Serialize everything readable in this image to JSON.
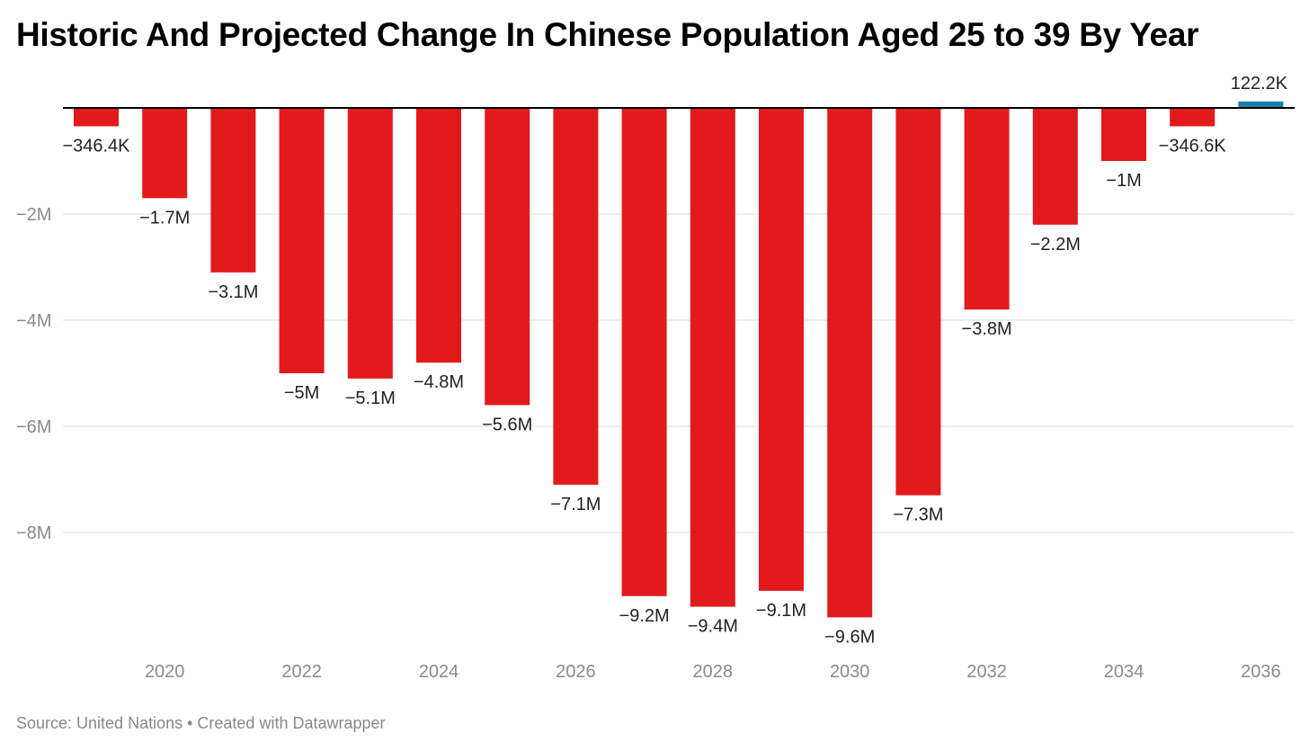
{
  "header": {
    "title": "Historic And Projected Change In Chinese Population Aged 25 to 39 By Year"
  },
  "footer": {
    "source": "Source: United Nations • Created with Datawrapper"
  },
  "chart_data": {
    "type": "bar",
    "title": "Historic And Projected Change In Chinese Population Aged 25 to 39 By Year",
    "xlabel": "",
    "ylabel": "",
    "categories": [
      2019,
      2020,
      2021,
      2022,
      2023,
      2024,
      2025,
      2026,
      2027,
      2028,
      2029,
      2030,
      2031,
      2032,
      2033,
      2034,
      2035,
      2036
    ],
    "values": [
      -346400,
      -1700000,
      -3100000,
      -5000000,
      -5100000,
      -4800000,
      -5600000,
      -7100000,
      -9200000,
      -9400000,
      -9100000,
      -9600000,
      -7300000,
      -3800000,
      -2200000,
      -1000000,
      -346600,
      122200
    ],
    "value_labels": [
      "−346.4K",
      "−1.7M",
      "−3.1M",
      "−5M",
      "−5.1M",
      "−4.8M",
      "−5.6M",
      "−7.1M",
      "−9.2M",
      "−9.4M",
      "−9.1M",
      "−9.6M",
      "−7.3M",
      "−3.8M",
      "−2.2M",
      "−1M",
      "−346.6K",
      "122.2K"
    ],
    "x_tick_labels": [
      "2020",
      "2022",
      "2024",
      "2026",
      "2028",
      "2030",
      "2032",
      "2034",
      "2036"
    ],
    "y_ticks": [
      -2000000,
      -4000000,
      -6000000,
      -8000000
    ],
    "y_tick_labels": [
      "−2M",
      "−4M",
      "−6M",
      "−8M"
    ],
    "ylim": [
      -10000000,
      300000
    ],
    "grid": true,
    "legend": "none",
    "colors": {
      "negative": "#e31a1c",
      "positive": "#1b7fab"
    }
  }
}
